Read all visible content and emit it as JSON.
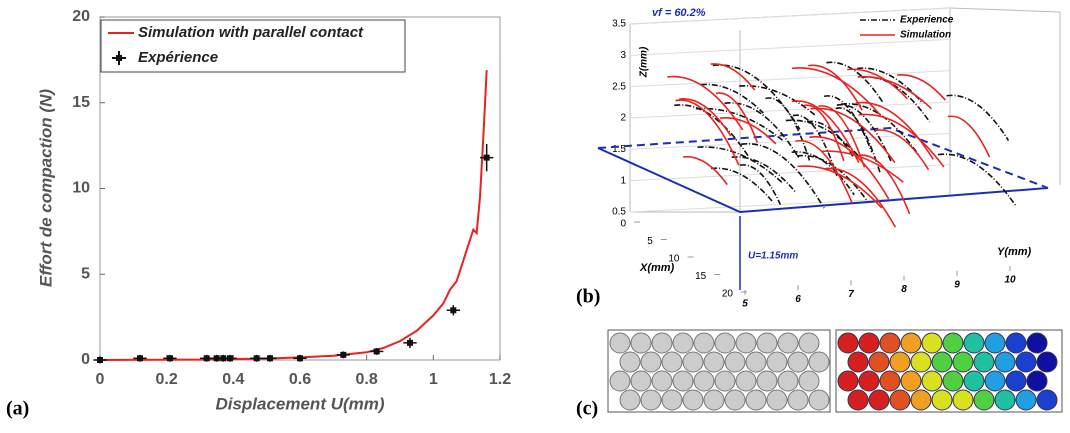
{
  "chart_data": [
    {
      "type": "line",
      "panel_label": "(a)",
      "x_label": "Displacement U(mm)",
      "y_label": "Effort de compaction (N)",
      "xlim": [
        0,
        1.2
      ],
      "ylim": [
        0,
        20
      ],
      "xticks": [
        0,
        0.2,
        0.4,
        0.6,
        0.8,
        1,
        1.2
      ],
      "yticks": [
        0,
        5,
        10,
        15,
        20
      ],
      "series": [
        {
          "name": "Simulation with parallel contact",
          "color": "#e8231f",
          "x": [
            0,
            0.3,
            0.5,
            0.6,
            0.7,
            0.8,
            0.85,
            0.9,
            0.95,
            1.0,
            1.03,
            1.05,
            1.07,
            1.09,
            1.11,
            1.12,
            1.13,
            1.14,
            1.15,
            1.16
          ],
          "values": [
            0,
            0.02,
            0.08,
            0.15,
            0.25,
            0.45,
            0.7,
            1.1,
            1.7,
            2.6,
            3.3,
            4.1,
            4.6,
            5.8,
            7.0,
            7.6,
            7.4,
            9.5,
            13,
            16.9
          ]
        },
        {
          "name": "Expérience",
          "color": "#111111",
          "x": [
            0,
            0.12,
            0.21,
            0.32,
            0.35,
            0.37,
            0.39,
            0.47,
            0.51,
            0.6,
            0.73,
            0.83,
            0.93,
            1.06,
            1.16
          ],
          "values": [
            0,
            0.1,
            0.1,
            0.1,
            0.1,
            0.1,
            0.1,
            0.1,
            0.1,
            0.1,
            0.3,
            0.5,
            1.0,
            2.9,
            11.8
          ],
          "xerr": [
            0.02,
            0.02,
            0.02,
            0.02,
            0.02,
            0.02,
            0.02,
            0.02,
            0.02,
            0.02,
            0.02,
            0.02,
            0.02,
            0.02,
            0.02
          ],
          "yerr": [
            0.2,
            0.2,
            0.2,
            0.2,
            0.2,
            0.2,
            0.2,
            0.2,
            0.2,
            0.2,
            0.2,
            0.2,
            0.3,
            0.3,
            0.8
          ]
        }
      ]
    },
    {
      "type": "3d",
      "panel_label": "(b)",
      "annotation": "vf = 60.2%",
      "displacement_label": "U=1.15mm",
      "x_label": "X(mm)",
      "y_label": "Y(mm)",
      "z_label": "Z(mm)",
      "xlim": [
        0,
        20
      ],
      "ylim": [
        5,
        10
      ],
      "zlim": [
        0.5,
        3.5
      ],
      "xticks": [
        0,
        5,
        10,
        15,
        20
      ],
      "yticks": [
        5,
        6,
        7,
        8,
        9,
        10
      ],
      "zticks": [
        0.5,
        1,
        1.5,
        2,
        2.5,
        3,
        3.5
      ],
      "series": [
        {
          "name": "Experience",
          "color": "#111111"
        },
        {
          "name": "Simulation",
          "color": "#e8231f"
        }
      ]
    },
    {
      "type": "image",
      "panel_label": "(c)"
    }
  ]
}
